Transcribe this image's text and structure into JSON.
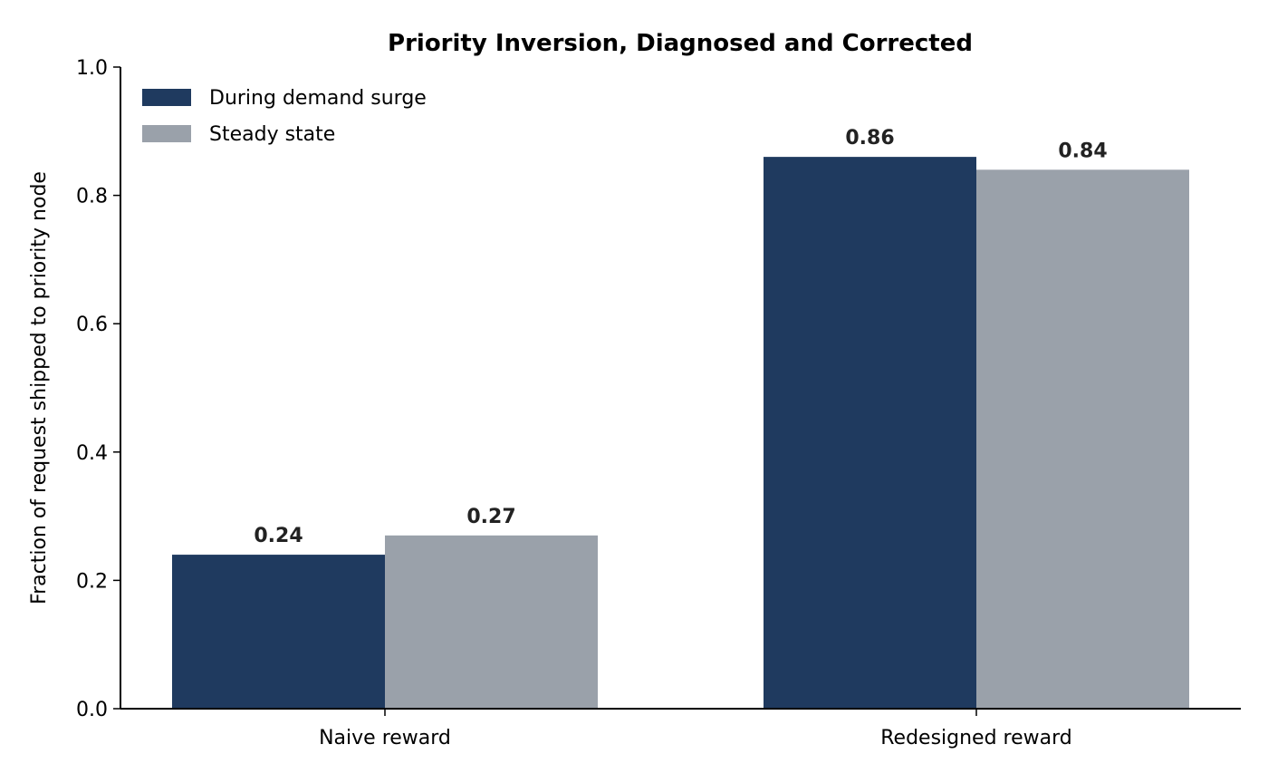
{
  "chart_data": {
    "type": "bar",
    "title": "Priority Inversion, Diagnosed and Corrected",
    "xlabel": "",
    "ylabel": "Fraction of request shipped to priority node",
    "categories": [
      "Naive reward",
      "Redesigned reward"
    ],
    "series": [
      {
        "name": "During demand surge",
        "values": [
          0.24,
          0.86
        ],
        "color": "#1f3a5f"
      },
      {
        "name": "Steady state",
        "values": [
          0.27,
          0.84
        ],
        "color": "#9aa1aa"
      }
    ],
    "data_labels": [
      [
        "0.24",
        "0.86"
      ],
      [
        "0.27",
        "0.84"
      ]
    ],
    "ylim": [
      0,
      1.0
    ],
    "yticks": [
      "0.0",
      "0.2",
      "0.4",
      "0.6",
      "0.8",
      "1.0"
    ],
    "grid": false,
    "legend_position": "top-left"
  }
}
